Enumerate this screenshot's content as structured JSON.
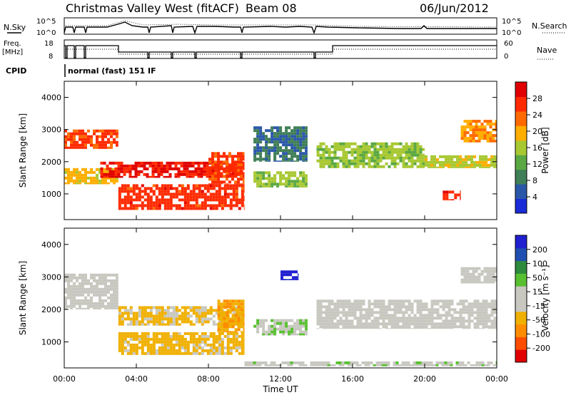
{
  "header": {
    "title": "Christmas Valley West (fitACF)",
    "beam": "Beam 08",
    "date": "06/Jun/2012"
  },
  "params_panel": {
    "nsky_label": "N.Sky",
    "nsearch_label": "N.Search",
    "noise_ticks": [
      "10^5",
      "10^0"
    ],
    "freq_label_1": "Freq.",
    "freq_label_2": "[MHz]",
    "freq_ticks": [
      "18",
      "8"
    ],
    "nave_label": "Nave",
    "nave_ticks": [
      "60",
      "0"
    ],
    "cpid_label": "CPID",
    "cpid_value": "normal (fast) 151 IF"
  },
  "xaxis": {
    "label": "Time UT",
    "ticks": [
      "00:00",
      "04:00",
      "08:00",
      "12:00",
      "16:00",
      "20:00",
      "00:00"
    ]
  },
  "power_panel": {
    "ylabel": "Slant Range [km]",
    "yticks": [
      "4000",
      "3000",
      "2000",
      "1000"
    ],
    "colorbar_label": "Power [dB]",
    "colorbar_ticks": [
      "28",
      "24",
      "20",
      "16",
      "12",
      "8",
      "4"
    ]
  },
  "velocity_panel": {
    "ylabel": "Slant Range [km]",
    "yticks": [
      "4000",
      "3000",
      "2000",
      "1000"
    ],
    "colorbar_label": "Velocity [m s⁻¹]",
    "colorbar_ticks": [
      "200",
      "100",
      "50",
      "15",
      "-15",
      "-50",
      "-100",
      "-200"
    ]
  },
  "colors": {
    "power_scale": [
      "#1a2bd8",
      "#2a57a8",
      "#3f7e56",
      "#5aa843",
      "#a8c832",
      "#ffae00",
      "#ff6a00",
      "#ff2a00",
      "#e00000"
    ],
    "velocity_scale": [
      "#e00000",
      "#ff4d00",
      "#ff8c00",
      "#f0b000",
      "#c8c8c0",
      "#c8c8c0",
      "#58c030",
      "#2e8a3c",
      "#1f4fb0",
      "#2020d0"
    ]
  },
  "chart_data": [
    {
      "type": "heatmap",
      "panel": "power",
      "x_unit": "hours UT",
      "xlim": [
        0,
        24
      ],
      "ylim": [
        200,
        4500
      ],
      "ylabel": "Slant Range [km]",
      "color_label": "Power [dB]",
      "clim": [
        0,
        30
      ],
      "regions": [
        {
          "x": [
            0,
            3
          ],
          "y": [
            2400,
            3000
          ],
          "value": 24
        },
        {
          "x": [
            0,
            3
          ],
          "y": [
            1300,
            1800
          ],
          "value": 18
        },
        {
          "x": [
            2,
            10
          ],
          "y": [
            1500,
            2000
          ],
          "value": 27
        },
        {
          "x": [
            3,
            10
          ],
          "y": [
            500,
            1300
          ],
          "value": 25
        },
        {
          "x": [
            8,
            10
          ],
          "y": [
            1300,
            2300
          ],
          "value": 24
        },
        {
          "x": [
            10.5,
            13.5
          ],
          "y": [
            1200,
            1700
          ],
          "value": 14
        },
        {
          "x": [
            10.5,
            13.5
          ],
          "y": [
            2000,
            3100
          ],
          "value": 7
        },
        {
          "x": [
            14,
            20
          ],
          "y": [
            1800,
            2600
          ],
          "value": 14
        },
        {
          "x": [
            20,
            24
          ],
          "y": [
            1800,
            2200
          ],
          "value": 16
        },
        {
          "x": [
            21,
            22
          ],
          "y": [
            800,
            1100
          ],
          "value": 26
        },
        {
          "x": [
            22,
            24
          ],
          "y": [
            2600,
            3300
          ],
          "value": 20
        }
      ]
    },
    {
      "type": "heatmap",
      "panel": "velocity",
      "x_unit": "hours UT",
      "xlim": [
        0,
        24
      ],
      "ylim": [
        200,
        4500
      ],
      "ylabel": "Slant Range [km]",
      "color_label": "Velocity [m s⁻¹]",
      "clim": [
        -250,
        250
      ],
      "regions": [
        {
          "x": [
            0,
            3
          ],
          "y": [
            2000,
            3100
          ],
          "value": 0
        },
        {
          "x": [
            3,
            10
          ],
          "y": [
            1500,
            2100
          ],
          "value": -60
        },
        {
          "x": [
            3,
            10
          ],
          "y": [
            600,
            1300
          ],
          "value": -70
        },
        {
          "x": [
            8.5,
            10
          ],
          "y": [
            1300,
            2300
          ],
          "value": -90
        },
        {
          "x": [
            10.5,
            13.5
          ],
          "y": [
            1200,
            1700
          ],
          "value": 40
        },
        {
          "x": [
            10,
            24
          ],
          "y": [
            250,
            400
          ],
          "value": 30
        },
        {
          "x": [
            12,
            13
          ],
          "y": [
            2900,
            3200
          ],
          "value": 220
        },
        {
          "x": [
            14,
            24
          ],
          "y": [
            1400,
            2300
          ],
          "value": 0
        },
        {
          "x": [
            22,
            24
          ],
          "y": [
            2800,
            3300
          ],
          "value": 0
        }
      ]
    }
  ]
}
